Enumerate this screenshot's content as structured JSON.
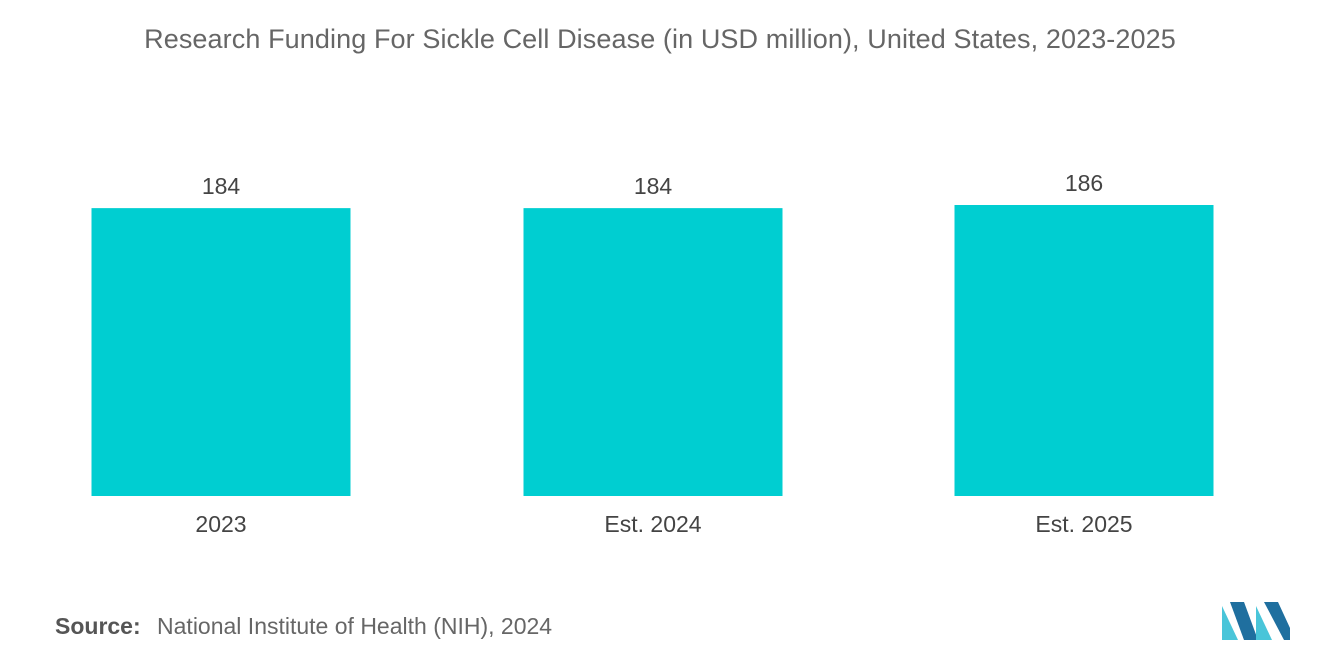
{
  "chart_data": {
    "type": "bar",
    "title": "Research Funding For Sickle Cell Disease (in USD million), United States, 2023-2025",
    "categories": [
      "2023",
      "Est. 2024",
      "Est. 2025"
    ],
    "values": [
      184,
      184,
      186
    ],
    "data_labels": [
      "184",
      "184",
      "186"
    ],
    "xlabel": "",
    "ylabel": "",
    "ylim": [
      0,
      186
    ],
    "grid": false,
    "legend": "none",
    "bar_color": "#00CED1"
  },
  "footer": {
    "source_label": "Source:",
    "source_text": "National Institute of Health (NIH), 2024"
  },
  "brand": {
    "logo_icon": "mordor-intelligence-logo-icon",
    "logo_color_light": "#49C5D9",
    "logo_color_dark": "#1F6F9F"
  }
}
